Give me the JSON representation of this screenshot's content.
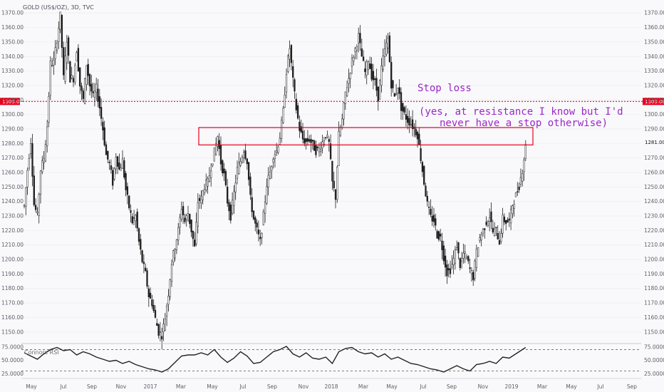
{
  "chart_data": {
    "type": "candlestick",
    "title": "GOLD (US$/OZ), 3D, TVC",
    "price_axis": {
      "ylim": [
        1143,
        1377
      ],
      "ticks": [
        "1150.00",
        "1160.00",
        "1170.00",
        "1180.00",
        "1190.00",
        "1200.00",
        "1210.00",
        "1220.00",
        "1230.00",
        "1240.00",
        "1250.00",
        "1260.00",
        "1270.00",
        "1280.00",
        "1290.00",
        "1300.00",
        "1310.00",
        "1320.00",
        "1330.00",
        "1340.00",
        "1350.00",
        "1360.00",
        "1370.00"
      ]
    },
    "time_axis": {
      "labels": [
        "May",
        "Jul",
        "Sep",
        "Nov",
        "2017",
        "Mar",
        "May",
        "Jul",
        "Sep",
        "Nov",
        "2018",
        "Mar",
        "May",
        "Jul",
        "Sep",
        "Nov",
        "2019",
        "Mar",
        "May",
        "Jul",
        "Sep"
      ]
    },
    "stop_line": {
      "value": 1309,
      "label": "1309.00",
      "color": "#e8001c"
    },
    "current_price": {
      "value": 1281,
      "label": "1281.00"
    },
    "resistance_zone": {
      "low": 1279,
      "high": 1291
    },
    "annotations": {
      "stop": "Stop loss",
      "line1": "(yes, at resistance I know but I'd",
      "line2": "never have a stop otherwise)"
    },
    "price_path": [
      [
        0,
        1237
      ],
      [
        2,
        1262
      ],
      [
        4,
        1282
      ],
      [
        6,
        1238
      ],
      [
        8,
        1230
      ],
      [
        10,
        1262
      ],
      [
        12,
        1270
      ],
      [
        14,
        1292
      ],
      [
        16,
        1335
      ],
      [
        18,
        1336
      ],
      [
        20,
        1352
      ],
      [
        22,
        1368
      ],
      [
        24,
        1325
      ],
      [
        26,
        1352
      ],
      [
        28,
        1325
      ],
      [
        30,
        1325
      ],
      [
        32,
        1345
      ],
      [
        34,
        1320
      ],
      [
        36,
        1310
      ],
      [
        38,
        1335
      ],
      [
        40,
        1320
      ],
      [
        42,
        1312
      ],
      [
        44,
        1318
      ],
      [
        46,
        1305
      ],
      [
        48,
        1290
      ],
      [
        50,
        1272
      ],
      [
        52,
        1266
      ],
      [
        54,
        1253
      ],
      [
        56,
        1272
      ],
      [
        58,
        1262
      ],
      [
        60,
        1268
      ],
      [
        62,
        1248
      ],
      [
        64,
        1236
      ],
      [
        66,
        1226
      ],
      [
        68,
        1230
      ],
      [
        70,
        1212
      ],
      [
        72,
        1199
      ],
      [
        74,
        1190
      ],
      [
        76,
        1175
      ],
      [
        78,
        1170
      ],
      [
        80,
        1159
      ],
      [
        82,
        1150
      ],
      [
        84,
        1148
      ],
      [
        86,
        1160
      ],
      [
        88,
        1177
      ],
      [
        90,
        1198
      ],
      [
        92,
        1209
      ],
      [
        94,
        1220
      ],
      [
        96,
        1236
      ],
      [
        98,
        1226
      ],
      [
        100,
        1232
      ],
      [
        102,
        1220
      ],
      [
        104,
        1208
      ],
      [
        106,
        1240
      ],
      [
        108,
        1242
      ],
      [
        110,
        1251
      ],
      [
        112,
        1253
      ],
      [
        114,
        1264
      ],
      [
        116,
        1274
      ],
      [
        118,
        1285
      ],
      [
        120,
        1267
      ],
      [
        122,
        1258
      ],
      [
        124,
        1240
      ],
      [
        126,
        1230
      ],
      [
        128,
        1246
      ],
      [
        130,
        1262
      ],
      [
        132,
        1268
      ],
      [
        134,
        1276
      ],
      [
        136,
        1268
      ],
      [
        138,
        1242
      ],
      [
        140,
        1228
      ],
      [
        142,
        1220
      ],
      [
        144,
        1212
      ],
      [
        146,
        1230
      ],
      [
        148,
        1252
      ],
      [
        150,
        1260
      ],
      [
        152,
        1272
      ],
      [
        154,
        1275
      ],
      [
        156,
        1285
      ],
      [
        158,
        1302
      ],
      [
        160,
        1330
      ],
      [
        162,
        1346
      ],
      [
        164,
        1323
      ],
      [
        166,
        1304
      ],
      [
        168,
        1290
      ],
      [
        170,
        1283
      ],
      [
        172,
        1281
      ],
      [
        174,
        1283
      ],
      [
        176,
        1279
      ],
      [
        178,
        1275
      ],
      [
        180,
        1276
      ],
      [
        182,
        1281
      ],
      [
        184,
        1286
      ],
      [
        186,
        1280
      ],
      [
        188,
        1253
      ],
      [
        190,
        1243
      ],
      [
        192,
        1286
      ],
      [
        194,
        1296
      ],
      [
        196,
        1315
      ],
      [
        198,
        1325
      ],
      [
        200,
        1337
      ],
      [
        202,
        1345
      ],
      [
        204,
        1354
      ],
      [
        206,
        1340
      ],
      [
        208,
        1329
      ],
      [
        210,
        1338
      ],
      [
        212,
        1327
      ],
      [
        214,
        1322
      ],
      [
        216,
        1312
      ],
      [
        218,
        1332
      ],
      [
        220,
        1344
      ],
      [
        222,
        1352
      ],
      [
        224,
        1321
      ],
      [
        226,
        1312
      ],
      [
        228,
        1320
      ],
      [
        230,
        1305
      ],
      [
        232,
        1300
      ],
      [
        234,
        1296
      ],
      [
        236,
        1294
      ],
      [
        238,
        1290
      ],
      [
        240,
        1286
      ],
      [
        242,
        1270
      ],
      [
        244,
        1253
      ],
      [
        246,
        1238
      ],
      [
        248,
        1229
      ],
      [
        250,
        1227
      ],
      [
        252,
        1217
      ],
      [
        254,
        1215
      ],
      [
        256,
        1202
      ],
      [
        258,
        1191
      ],
      [
        260,
        1193
      ],
      [
        262,
        1200
      ],
      [
        264,
        1210
      ],
      [
        266,
        1196
      ],
      [
        268,
        1204
      ],
      [
        270,
        1201
      ],
      [
        272,
        1193
      ],
      [
        274,
        1188
      ],
      [
        276,
        1205
      ],
      [
        278,
        1215
      ],
      [
        280,
        1220
      ],
      [
        282,
        1226
      ],
      [
        284,
        1230
      ],
      [
        286,
        1219
      ],
      [
        288,
        1220
      ],
      [
        290,
        1212
      ],
      [
        292,
        1228
      ],
      [
        294,
        1226
      ],
      [
        296,
        1226
      ],
      [
        298,
        1238
      ],
      [
        300,
        1244
      ],
      [
        302,
        1251
      ],
      [
        304,
        1262
      ],
      [
        306,
        1278
      ]
    ],
    "rsi": {
      "label": "Connors RSI",
      "ylim": [
        20,
        80
      ],
      "ticks": [
        "25.0000",
        "50.0000",
        "75.0000"
      ],
      "levels": [
        70,
        30
      ],
      "path": [
        [
          0,
          64
        ],
        [
          4,
          58
        ],
        [
          8,
          52
        ],
        [
          12,
          62
        ],
        [
          16,
          70
        ],
        [
          20,
          74
        ],
        [
          24,
          68
        ],
        [
          28,
          70
        ],
        [
          32,
          60
        ],
        [
          36,
          66
        ],
        [
          40,
          62
        ],
        [
          44,
          56
        ],
        [
          48,
          52
        ],
        [
          52,
          48
        ],
        [
          56,
          50
        ],
        [
          60,
          44
        ],
        [
          64,
          48
        ],
        [
          68,
          42
        ],
        [
          72,
          38
        ],
        [
          76,
          34
        ],
        [
          80,
          32
        ],
        [
          84,
          28
        ],
        [
          88,
          34
        ],
        [
          92,
          46
        ],
        [
          96,
          58
        ],
        [
          100,
          60
        ],
        [
          104,
          60
        ],
        [
          108,
          64
        ],
        [
          112,
          60
        ],
        [
          116,
          70
        ],
        [
          120,
          56
        ],
        [
          124,
          46
        ],
        [
          128,
          54
        ],
        [
          132,
          66
        ],
        [
          136,
          58
        ],
        [
          140,
          44
        ],
        [
          144,
          46
        ],
        [
          148,
          56
        ],
        [
          152,
          66
        ],
        [
          156,
          70
        ],
        [
          160,
          76
        ],
        [
          164,
          62
        ],
        [
          168,
          56
        ],
        [
          172,
          64
        ],
        [
          176,
          54
        ],
        [
          180,
          52
        ],
        [
          184,
          56
        ],
        [
          188,
          44
        ],
        [
          192,
          66
        ],
        [
          196,
          72
        ],
        [
          200,
          74
        ],
        [
          204,
          66
        ],
        [
          208,
          62
        ],
        [
          212,
          64
        ],
        [
          216,
          56
        ],
        [
          220,
          62
        ],
        [
          224,
          52
        ],
        [
          228,
          56
        ],
        [
          232,
          50
        ],
        [
          236,
          44
        ],
        [
          240,
          42
        ],
        [
          244,
          38
        ],
        [
          248,
          34
        ],
        [
          252,
          32
        ],
        [
          256,
          28
        ],
        [
          260,
          34
        ],
        [
          264,
          40
        ],
        [
          268,
          34
        ],
        [
          272,
          30
        ],
        [
          276,
          42
        ],
        [
          280,
          44
        ],
        [
          284,
          48
        ],
        [
          288,
          44
        ],
        [
          292,
          56
        ],
        [
          296,
          54
        ],
        [
          300,
          62
        ],
        [
          304,
          70
        ],
        [
          306,
          74
        ]
      ]
    }
  }
}
